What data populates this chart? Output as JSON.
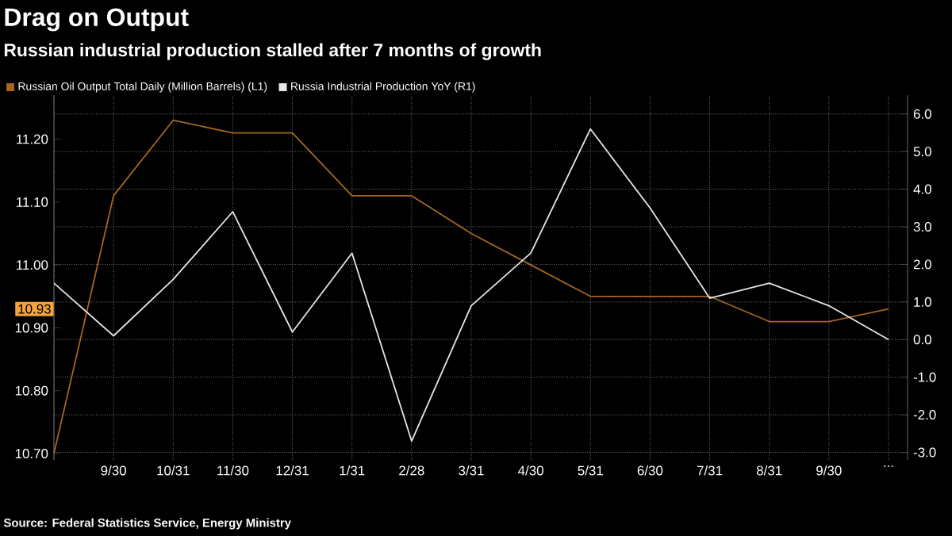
{
  "chart_data": {
    "type": "line",
    "title": "Drag on Output",
    "subtitle": "Russian industrial production stalled after 7 months of growth",
    "categories": [
      null,
      "9/30",
      "10/31",
      "11/30",
      "12/31",
      "1/31",
      "2/28",
      "3/31",
      "4/30",
      "5/31",
      "6/30",
      "7/31",
      "8/31",
      "9/30",
      "..."
    ],
    "series": [
      {
        "name": "Russian Oil Output Total Daily (Million Barrels)  (L1)",
        "color": "#a5651f",
        "values": [
          10.7,
          11.11,
          11.23,
          11.21,
          11.21,
          11.11,
          11.11,
          11.05,
          11.0,
          10.95,
          10.95,
          10.95,
          10.91,
          10.91,
          10.93
        ]
      },
      {
        "name": "Russia Industrial Production YoY (R1)",
        "color": "#e6e6e6",
        "axis": "y2",
        "values": [
          1.5,
          0.1,
          1.6,
          3.4,
          0.2,
          2.3,
          -2.7,
          0.9,
          2.3,
          5.6,
          3.5,
          1.1,
          1.5,
          0.9,
          0.0
        ]
      }
    ],
    "ylim": [
      10.69,
      11.27
    ],
    "yticks": [
      {
        "value": 10.7,
        "label": "10.70"
      },
      {
        "value": 10.8,
        "label": "10.80"
      },
      {
        "value": 10.9,
        "label": "10.90"
      },
      {
        "value": 11.0,
        "label": "11.00"
      },
      {
        "value": 11.1,
        "label": "11.10"
      },
      {
        "value": 11.2,
        "label": "11.20"
      }
    ],
    "y2lim": [
      -3.2,
      6.5
    ],
    "y2ticks": [
      {
        "value": -3,
        "label": "-3.0"
      },
      {
        "value": -2,
        "label": "-2.0"
      },
      {
        "value": -1,
        "label": "-1.0"
      },
      {
        "value": 0,
        "label": "0.0"
      },
      {
        "value": 1,
        "label": "1.0"
      },
      {
        "value": 2,
        "label": "2.0"
      },
      {
        "value": 3,
        "label": "3.0"
      },
      {
        "value": 4,
        "label": "4.0"
      },
      {
        "value": 5,
        "label": "5.0"
      },
      {
        "value": 6,
        "label": "6.0"
      }
    ],
    "grid": true,
    "legend": "top left",
    "annotations": [
      {
        "text": "10.93",
        "y": 10.93
      },
      "Source: Federal Statistics Service, Energy Ministry"
    ]
  }
}
